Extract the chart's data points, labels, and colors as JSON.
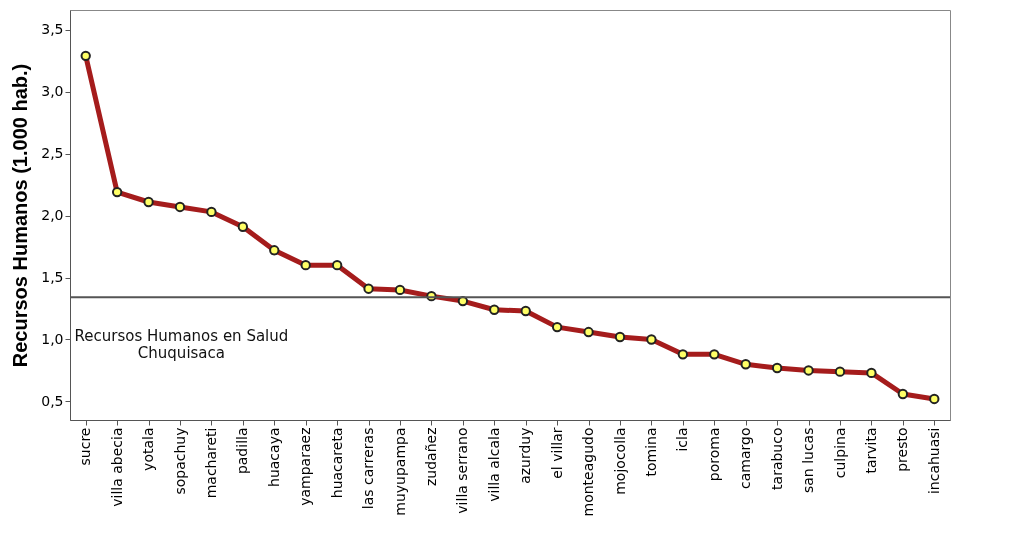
{
  "chart_data": {
    "type": "line",
    "ylabel": "Recursos Humanos (1.000 hab.)",
    "categories": [
      "sucre",
      "villa abecia",
      "yotala",
      "sopachuy",
      "machareti",
      "padilla",
      "huacaya",
      "yamparaez",
      "huacareta",
      "las carreras",
      "muyupampa",
      "zudañez",
      "villa serrano",
      "villa alcala",
      "azurduy",
      "el villar",
      "monteagudo",
      "mojocolla",
      "tomina",
      "icla",
      "poroma",
      "camargo",
      "tarabuco",
      "san lucas",
      "culpina",
      "tarvita",
      "presto",
      "incahuasi"
    ],
    "series": [
      {
        "color": "#a51c1c",
        "values": [
          3.29,
          2.19,
          2.11,
          2.07,
          2.03,
          1.91,
          1.72,
          1.6,
          1.6,
          1.41,
          1.4,
          1.35,
          1.31,
          1.24,
          1.23,
          1.1,
          1.06,
          1.02,
          1.0,
          0.88,
          0.88,
          0.8,
          0.77,
          0.75,
          0.74,
          0.73,
          0.56,
          0.52
        ]
      }
    ],
    "ylim": [
      0.35,
      3.66
    ],
    "yticks": [
      {
        "value": 0.5,
        "label": "0,5"
      },
      {
        "value": 1.0,
        "label": "1,0"
      },
      {
        "value": 1.5,
        "label": "1,5"
      },
      {
        "value": 2.0,
        "label": "2,0"
      },
      {
        "value": 2.5,
        "label": "2,5"
      },
      {
        "value": 3.0,
        "label": "3,0"
      },
      {
        "value": 3.5,
        "label": "3,5"
      }
    ],
    "ref_lines": [
      {
        "axis": "y",
        "value": 1.34,
        "label": "Recursos Humanos en Salud\nChuquisaca",
        "color": "#555555"
      }
    ],
    "grid": false,
    "marker": "circle",
    "line_style": "solid"
  }
}
